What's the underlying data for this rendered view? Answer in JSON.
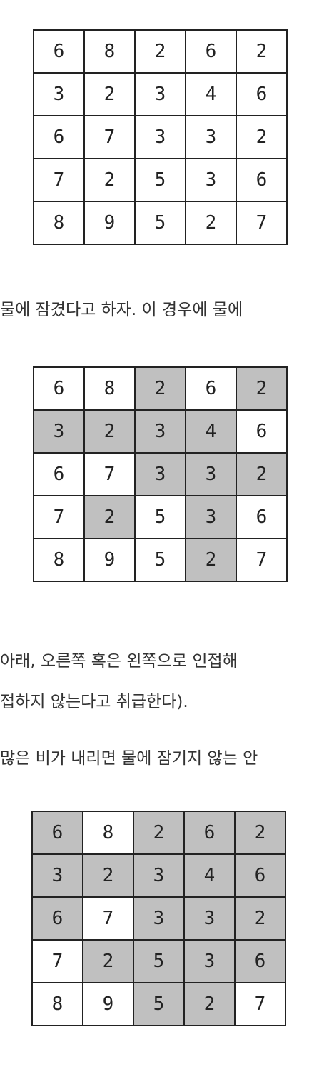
{
  "grids": [
    {
      "values": [
        [
          "6",
          "8",
          "2",
          "6",
          "2"
        ],
        [
          "3",
          "2",
          "3",
          "4",
          "6"
        ],
        [
          "6",
          "7",
          "3",
          "3",
          "2"
        ],
        [
          "7",
          "2",
          "5",
          "3",
          "6"
        ],
        [
          "8",
          "9",
          "5",
          "2",
          "7"
        ]
      ],
      "shaded": []
    },
    {
      "values": [
        [
          "6",
          "8",
          "2",
          "6",
          "2"
        ],
        [
          "3",
          "2",
          "3",
          "4",
          "6"
        ],
        [
          "6",
          "7",
          "3",
          "3",
          "2"
        ],
        [
          "7",
          "2",
          "5",
          "3",
          "6"
        ],
        [
          "8",
          "9",
          "5",
          "2",
          "7"
        ]
      ],
      "shaded": [
        [
          0,
          2
        ],
        [
          0,
          4
        ],
        [
          1,
          0
        ],
        [
          1,
          1
        ],
        [
          1,
          2
        ],
        [
          1,
          3
        ],
        [
          2,
          2
        ],
        [
          2,
          3
        ],
        [
          2,
          4
        ],
        [
          3,
          1
        ],
        [
          3,
          3
        ],
        [
          4,
          3
        ]
      ]
    },
    {
      "values": [
        [
          "6",
          "8",
          "2",
          "6",
          "2"
        ],
        [
          "3",
          "2",
          "3",
          "4",
          "6"
        ],
        [
          "6",
          "7",
          "3",
          "3",
          "2"
        ],
        [
          "7",
          "2",
          "5",
          "3",
          "6"
        ],
        [
          "8",
          "9",
          "5",
          "2",
          "7"
        ]
      ],
      "shaded": [
        [
          0,
          0
        ],
        [
          0,
          2
        ],
        [
          0,
          3
        ],
        [
          0,
          4
        ],
        [
          1,
          0
        ],
        [
          1,
          1
        ],
        [
          1,
          2
        ],
        [
          1,
          3
        ],
        [
          1,
          4
        ],
        [
          2,
          0
        ],
        [
          2,
          2
        ],
        [
          2,
          3
        ],
        [
          2,
          4
        ],
        [
          3,
          1
        ],
        [
          3,
          2
        ],
        [
          3,
          3
        ],
        [
          3,
          4
        ],
        [
          4,
          2
        ],
        [
          4,
          3
        ]
      ]
    }
  ],
  "text": {
    "line1": "물에 잠겼다고 하자. 이 경우에 물에",
    "line2": " 아래, 오른쪽 혹은 왼쪽으로 인접해",
    "line3": "접하지 않는다고 취급한다).",
    "line4": "많은 비가 내리면 물에 잠기지 않는 안"
  }
}
